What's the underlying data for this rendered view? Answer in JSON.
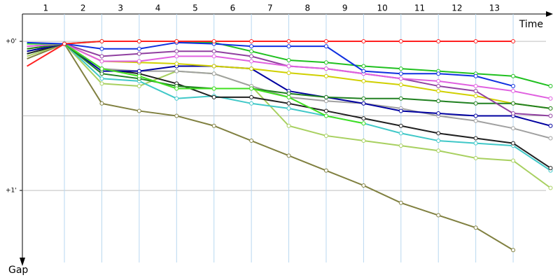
{
  "chart_data": {
    "type": "line",
    "x_label": "Time",
    "y_label": "Gap",
    "laps": [
      "1",
      "2",
      "3",
      "4",
      "5",
      "6",
      "7",
      "8",
      "9",
      "10",
      "11",
      "12",
      "13"
    ],
    "x": [
      0,
      1,
      2,
      3,
      4,
      5,
      6,
      7,
      8,
      9,
      10,
      11,
      12,
      13,
      14
    ],
    "xlim": [
      0,
      14
    ],
    "ylim": [
      -11,
      89
    ],
    "yticks": [
      {
        "value": 0,
        "label": "+0'"
      },
      {
        "value": 60,
        "label": "+1'"
      }
    ],
    "ygrid": [
      0,
      30,
      60
    ],
    "series": [
      {
        "color": "#808040",
        "values": [
          7,
          1,
          25,
          28,
          30,
          34,
          40,
          46,
          52,
          58,
          65,
          70,
          75,
          84,
          null
        ]
      },
      {
        "color": "#a8d060",
        "values": [
          6,
          1,
          17,
          18,
          12,
          13,
          18,
          34,
          38,
          40,
          42,
          44,
          47,
          48,
          59
        ]
      },
      {
        "color": "#40c8c8",
        "values": [
          5,
          1,
          15,
          16,
          23,
          22,
          25,
          27,
          30,
          33,
          37,
          40,
          41,
          42,
          52
        ]
      },
      {
        "color": "#202020",
        "values": [
          5,
          1,
          11,
          13,
          17,
          22.5,
          22.5,
          25,
          28,
          31,
          34,
          37,
          39,
          41,
          51
        ]
      },
      {
        "color": "#a0a0a0",
        "values": [
          4,
          1,
          11,
          12,
          12,
          13,
          18,
          22.5,
          24,
          25,
          27,
          30,
          32,
          35,
          39
        ]
      },
      {
        "color": "#0000a0",
        "values": [
          4,
          1,
          12,
          12,
          10,
          10,
          11,
          20,
          22.5,
          25,
          28,
          29,
          30,
          30,
          34
        ]
      },
      {
        "color": "#d0d000",
        "values": [
          3,
          1,
          8,
          8.5,
          9,
          10,
          11,
          12.7,
          14,
          16,
          17.5,
          20,
          22,
          25,
          27
        ]
      },
      {
        "color": "#208020",
        "values": [
          3,
          1,
          13,
          15,
          18,
          19,
          19,
          21,
          22.5,
          23,
          23,
          24,
          25,
          25,
          27
        ]
      },
      {
        "color": "#9040a0",
        "values": [
          2,
          1,
          6,
          5,
          4,
          4,
          6,
          10,
          11,
          13,
          15,
          18,
          20,
          29,
          30
        ]
      },
      {
        "color": "#e060e0",
        "values": [
          2,
          1,
          8,
          8,
          6,
          6,
          8,
          10,
          11,
          13,
          15,
          16,
          18,
          20,
          23
        ]
      },
      {
        "color": "#20c020",
        "values": [
          1,
          1,
          0,
          0,
          0,
          0.5,
          4,
          7.6,
          8.5,
          10,
          11,
          12,
          13,
          14,
          18
        ]
      },
      {
        "color": "#40e020",
        "values": [
          1,
          1,
          11,
          14,
          19,
          19,
          19,
          22.5,
          30,
          33,
          null,
          null,
          null,
          null,
          null
        ]
      },
      {
        "color": "#1030e0",
        "values": [
          0.5,
          1,
          3,
          3,
          0.5,
          1,
          2,
          2,
          2,
          12,
          13,
          13,
          14,
          18,
          null
        ]
      },
      {
        "color": "#ff2020",
        "values": [
          10,
          1,
          0,
          0,
          0,
          0,
          0,
          0,
          0,
          0,
          0,
          0,
          0,
          0,
          null
        ]
      }
    ]
  }
}
